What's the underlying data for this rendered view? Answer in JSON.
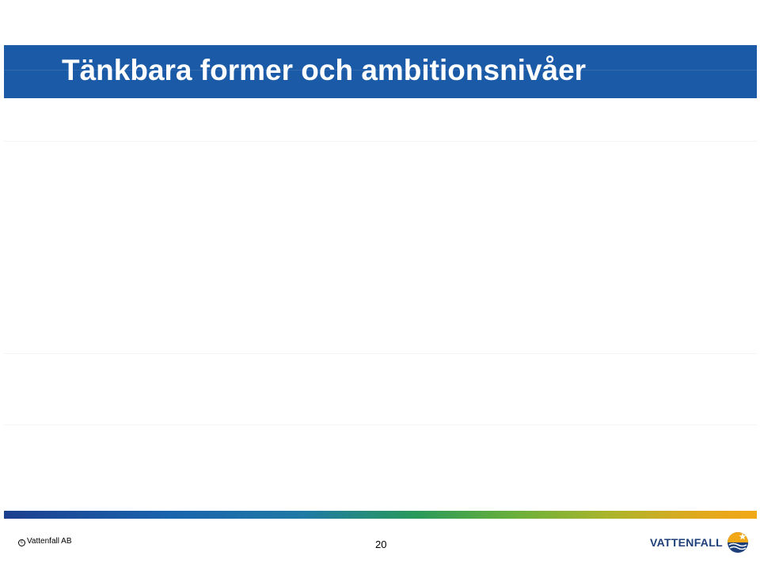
{
  "slide": {
    "title": "Tänkbara former och ambitionsnivåer",
    "copyright": "Vattenfall AB",
    "page_number": "20",
    "logo_text": "VATTENFALL",
    "brand_colors": {
      "title_bar": "#1a5aa7",
      "logo_blue": "#1f3f7a",
      "logo_yellow": "#f2a816"
    }
  },
  "icons": {
    "copyright": "copyright-icon",
    "logo": "vattenfall-sun-logo-icon"
  }
}
